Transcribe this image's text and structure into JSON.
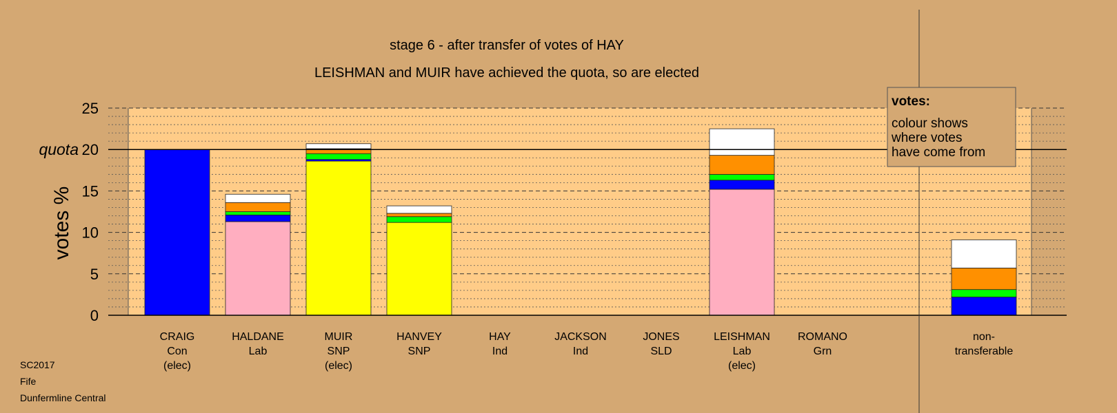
{
  "colors": {
    "background": "#d4a873",
    "plot_area": "#ffcc88",
    "Con": "#0000ff",
    "Lab": "#ffaec0",
    "SNP": "#ffff00",
    "Grn": "#00ff00",
    "SLD": "#ff9000",
    "Ind": "#ffffff"
  },
  "footer": {
    "election": "SC2017",
    "council": "Fife",
    "ward": "Dunfermline Central"
  },
  "chart_data": {
    "type": "bar",
    "stacked": true,
    "title": "stage 6 - after transfer of votes of HAY",
    "subtitle": "LEISHMAN and MUIR have achieved the quota, so are elected",
    "ylabel": "votes %",
    "ylim": [
      0,
      25
    ],
    "yticks": [
      0,
      5,
      10,
      15,
      20,
      25
    ],
    "quota": 20,
    "quota_label": "quota",
    "grid": true,
    "legend": {
      "title": "votes:",
      "lines": [
        "colour shows",
        "where votes",
        "have come from"
      ],
      "placement": "top-right"
    },
    "categories": [
      {
        "name": "CRAIG",
        "party": "Con",
        "status": "(elec)"
      },
      {
        "name": "HALDANE",
        "party": "Lab",
        "status": ""
      },
      {
        "name": "MUIR",
        "party": "SNP",
        "status": "(elec)"
      },
      {
        "name": "HANVEY",
        "party": "SNP",
        "status": ""
      },
      {
        "name": "HAY",
        "party": "Ind",
        "status": ""
      },
      {
        "name": "JACKSON",
        "party": "Ind",
        "status": ""
      },
      {
        "name": "JONES",
        "party": "SLD",
        "status": ""
      },
      {
        "name": "LEISHMAN",
        "party": "Lab",
        "status": "(elec)"
      },
      {
        "name": "ROMANO",
        "party": "Grn",
        "status": ""
      },
      {
        "name": "non-",
        "party": "transferable",
        "status": ""
      }
    ],
    "bars": [
      [
        {
          "color": "Con",
          "value": 20.0
        }
      ],
      [
        {
          "color": "Lab",
          "value": 11.3
        },
        {
          "color": "Con",
          "value": 0.8
        },
        {
          "color": "Grn",
          "value": 0.4
        },
        {
          "color": "SLD",
          "value": 1.1
        },
        {
          "color": "Ind",
          "value": 1.0
        }
      ],
      [
        {
          "color": "SNP",
          "value": 18.6
        },
        {
          "color": "Con",
          "value": 0.2
        },
        {
          "color": "Grn",
          "value": 0.7
        },
        {
          "color": "SLD",
          "value": 0.6
        },
        {
          "color": "Ind",
          "value": 0.6
        }
      ],
      [
        {
          "color": "SNP",
          "value": 11.2
        },
        {
          "color": "Grn",
          "value": 0.7
        },
        {
          "color": "SLD",
          "value": 0.4
        },
        {
          "color": "Ind",
          "value": 0.9
        }
      ],
      [],
      [],
      [],
      [
        {
          "color": "Lab",
          "value": 15.2
        },
        {
          "color": "Con",
          "value": 1.1
        },
        {
          "color": "Grn",
          "value": 0.7
        },
        {
          "color": "SLD",
          "value": 2.3
        },
        {
          "color": "Ind",
          "value": 3.2
        }
      ],
      [],
      [
        {
          "color": "Con",
          "value": 2.2
        },
        {
          "color": "Grn",
          "value": 0.9
        },
        {
          "color": "SLD",
          "value": 2.6
        },
        {
          "color": "Ind",
          "value": 3.4
        }
      ]
    ]
  }
}
